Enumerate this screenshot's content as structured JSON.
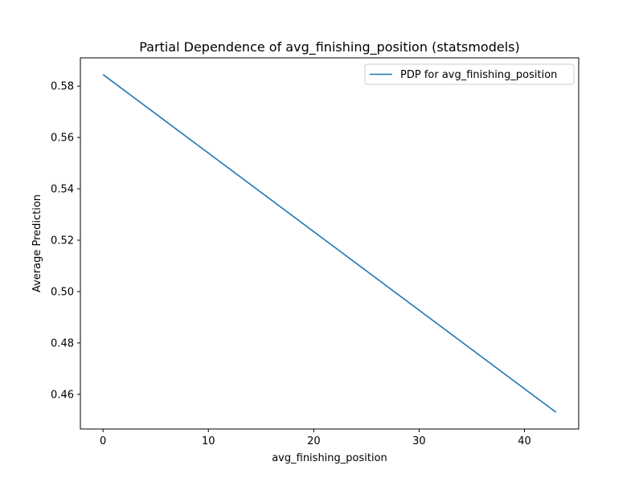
{
  "chart_data": {
    "type": "line",
    "title": "Partial Dependence of avg_finishing_position (statsmodels)",
    "xlabel": "avg_finishing_position",
    "ylabel": "Average Prediction",
    "xlim": [
      -2.15,
      45.15
    ],
    "ylim": [
      0.4465,
      0.591
    ],
    "xticks": [
      0,
      10,
      20,
      30,
      40
    ],
    "yticks": [
      0.46,
      0.48,
      0.5,
      0.52,
      0.54,
      0.56,
      0.58
    ],
    "ytick_labels": [
      "0.46",
      "0.48",
      "0.50",
      "0.52",
      "0.54",
      "0.56",
      "0.58"
    ],
    "grid": false,
    "legend_position": "top-right",
    "series": [
      {
        "name": "PDP for avg_finishing_position",
        "color": "#1f77b4",
        "x": [
          0,
          43
        ],
        "y": [
          0.5845,
          0.453
        ]
      }
    ]
  }
}
